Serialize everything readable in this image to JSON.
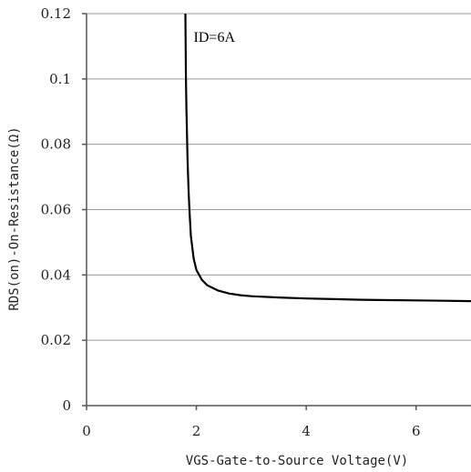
{
  "chart_data": {
    "type": "line",
    "xlabel": "VGS-Gate-to-Source Voltage(V)",
    "ylabel": "RDS(on)-On-Resistance(Ω)",
    "xlim": [
      0,
      7
    ],
    "ylim": [
      0,
      0.12
    ],
    "x_ticks": [
      "0",
      "2",
      "4",
      "6"
    ],
    "x_tick_values": [
      0,
      2,
      4,
      6
    ],
    "y_ticks": [
      "0",
      "0.02",
      "0.04",
      "0.06",
      "0.08",
      "0.1",
      "0.12"
    ],
    "y_tick_values": [
      0,
      0.02,
      0.04,
      0.06,
      0.08,
      0.1,
      0.12
    ],
    "grid": "horizontal",
    "annotation": {
      "text": "ID=6A",
      "x": 1.95,
      "y": 0.113
    },
    "series": [
      {
        "x": [
          1.8,
          1.81,
          1.82,
          1.84,
          1.86,
          1.88,
          1.9,
          1.95,
          2.0,
          2.1,
          2.2,
          2.4,
          2.6,
          2.8,
          3.0,
          3.5,
          4.0,
          4.5,
          5.0,
          5.5,
          6.0,
          6.5,
          7.0
        ],
        "values": [
          0.12,
          0.1,
          0.09,
          0.075,
          0.065,
          0.058,
          0.052,
          0.045,
          0.0415,
          0.0385,
          0.0368,
          0.0352,
          0.0343,
          0.0338,
          0.0335,
          0.0331,
          0.0328,
          0.0326,
          0.0324,
          0.0323,
          0.0322,
          0.0321,
          0.032
        ]
      }
    ]
  }
}
